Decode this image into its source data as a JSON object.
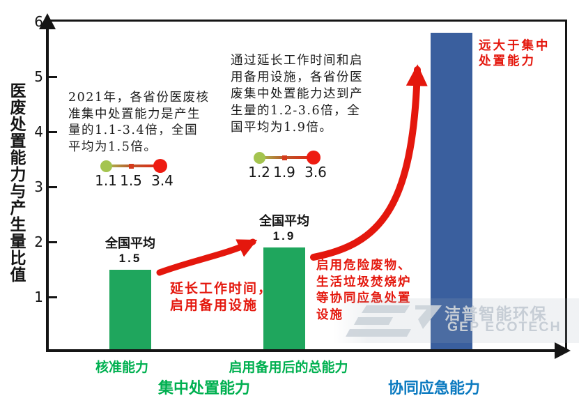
{
  "chart_data": {
    "type": "bar",
    "title": "",
    "xlabel": "",
    "ylabel": "医废处置能力与产生量比值",
    "ylim": [
      0,
      6
    ],
    "yticks": [
      1,
      2,
      3,
      4,
      5,
      6
    ],
    "grid": false,
    "legend": false,
    "bars": [
      {
        "category": "核准能力",
        "value": 1.5,
        "color": "#1fa65d",
        "top_label": "全国平均",
        "value_label": "1.5"
      },
      {
        "category": "启用备用后的总能力",
        "value": 1.9,
        "color": "#1fa65d",
        "top_label": "全国平均",
        "value_label": "1.9"
      },
      {
        "category": "协同应急能力",
        "value": 5.8,
        "color": "#3a5f9e",
        "top_label": null,
        "value_label": null
      }
    ],
    "category_label_color": "#00b050",
    "group_labels": [
      {
        "text": "集中处置能力",
        "color": "#00b050"
      },
      {
        "text": "协同应急能力",
        "color": "#0b7ac0"
      }
    ],
    "ranges": [
      {
        "min": 1.1,
        "avg": 1.5,
        "max": 3.4
      },
      {
        "min": 1.2,
        "avg": 1.9,
        "max": 3.6
      }
    ],
    "accent_red": "#e4170d"
  },
  "annotations": {
    "note1": "2021年，各省份医废核\n准集中处置能力是产生\n量的1.1-3.4倍，全国\n平均为1.5倍。",
    "note2": "通过延长工作时间和启\n用备用设施，各省份医\n废集中处置能力达到产\n生量的1.2-3.6倍，全\n国平均为1.9倍。",
    "arrow1_label": "延长工作时间，\n启用备用设施",
    "arrow2_label": "启用危险废物、\n生活垃圾焚烧炉\n等协同应急处置\n设施",
    "far_exceed_label": "远大于集中\n处置能力"
  },
  "watermark": {
    "cn": "洁普智能环保",
    "en": "GEP ECOTECH"
  }
}
